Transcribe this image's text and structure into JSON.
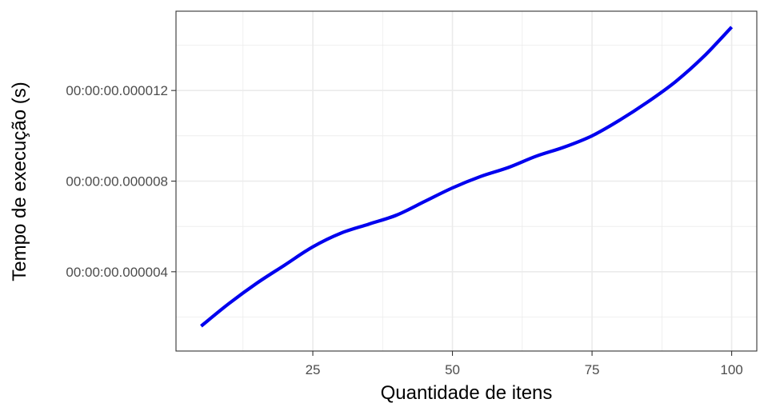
{
  "chart_data": {
    "type": "line",
    "title": "",
    "xlabel": "Quantidade de itens",
    "ylabel": "Tempo de execução (s)",
    "xlim": [
      0.5,
      104.5
    ],
    "ylim": [
      5e-07,
      1.55e-05
    ],
    "x_ticks": [
      {
        "value": 25,
        "label": "25"
      },
      {
        "value": 50,
        "label": "50"
      },
      {
        "value": 75,
        "label": "75"
      },
      {
        "value": 100,
        "label": "100"
      }
    ],
    "y_ticks": [
      {
        "value": 4e-06,
        "label": "00:00:00.000004"
      },
      {
        "value": 8e-06,
        "label": "00:00:00.000008"
      },
      {
        "value": 1.2e-05,
        "label": "00:00:00.000012"
      }
    ],
    "x_minor_ticks": [
      12.5,
      37.5,
      62.5,
      87.5
    ],
    "y_minor_ticks": [
      2e-06,
      6e-06,
      1e-05,
      1.4e-05
    ],
    "grid": true,
    "series": [
      {
        "color": "#0000ee",
        "x": [
          5,
          10,
          15,
          20,
          25,
          30,
          35,
          40,
          45,
          50,
          55,
          60,
          65,
          70,
          75,
          80,
          85,
          90,
          95,
          100
        ],
        "y": [
          1.6e-06,
          2.6e-06,
          3.5e-06,
          4.3e-06,
          5.1e-06,
          5.7e-06,
          6.1e-06,
          6.5e-06,
          7.1e-06,
          7.7e-06,
          8.2e-06,
          8.6e-06,
          9.1e-06,
          9.5e-06,
          1e-05,
          1.07e-05,
          1.15e-05,
          1.24e-05,
          1.35e-05,
          1.48e-05
        ]
      }
    ]
  }
}
